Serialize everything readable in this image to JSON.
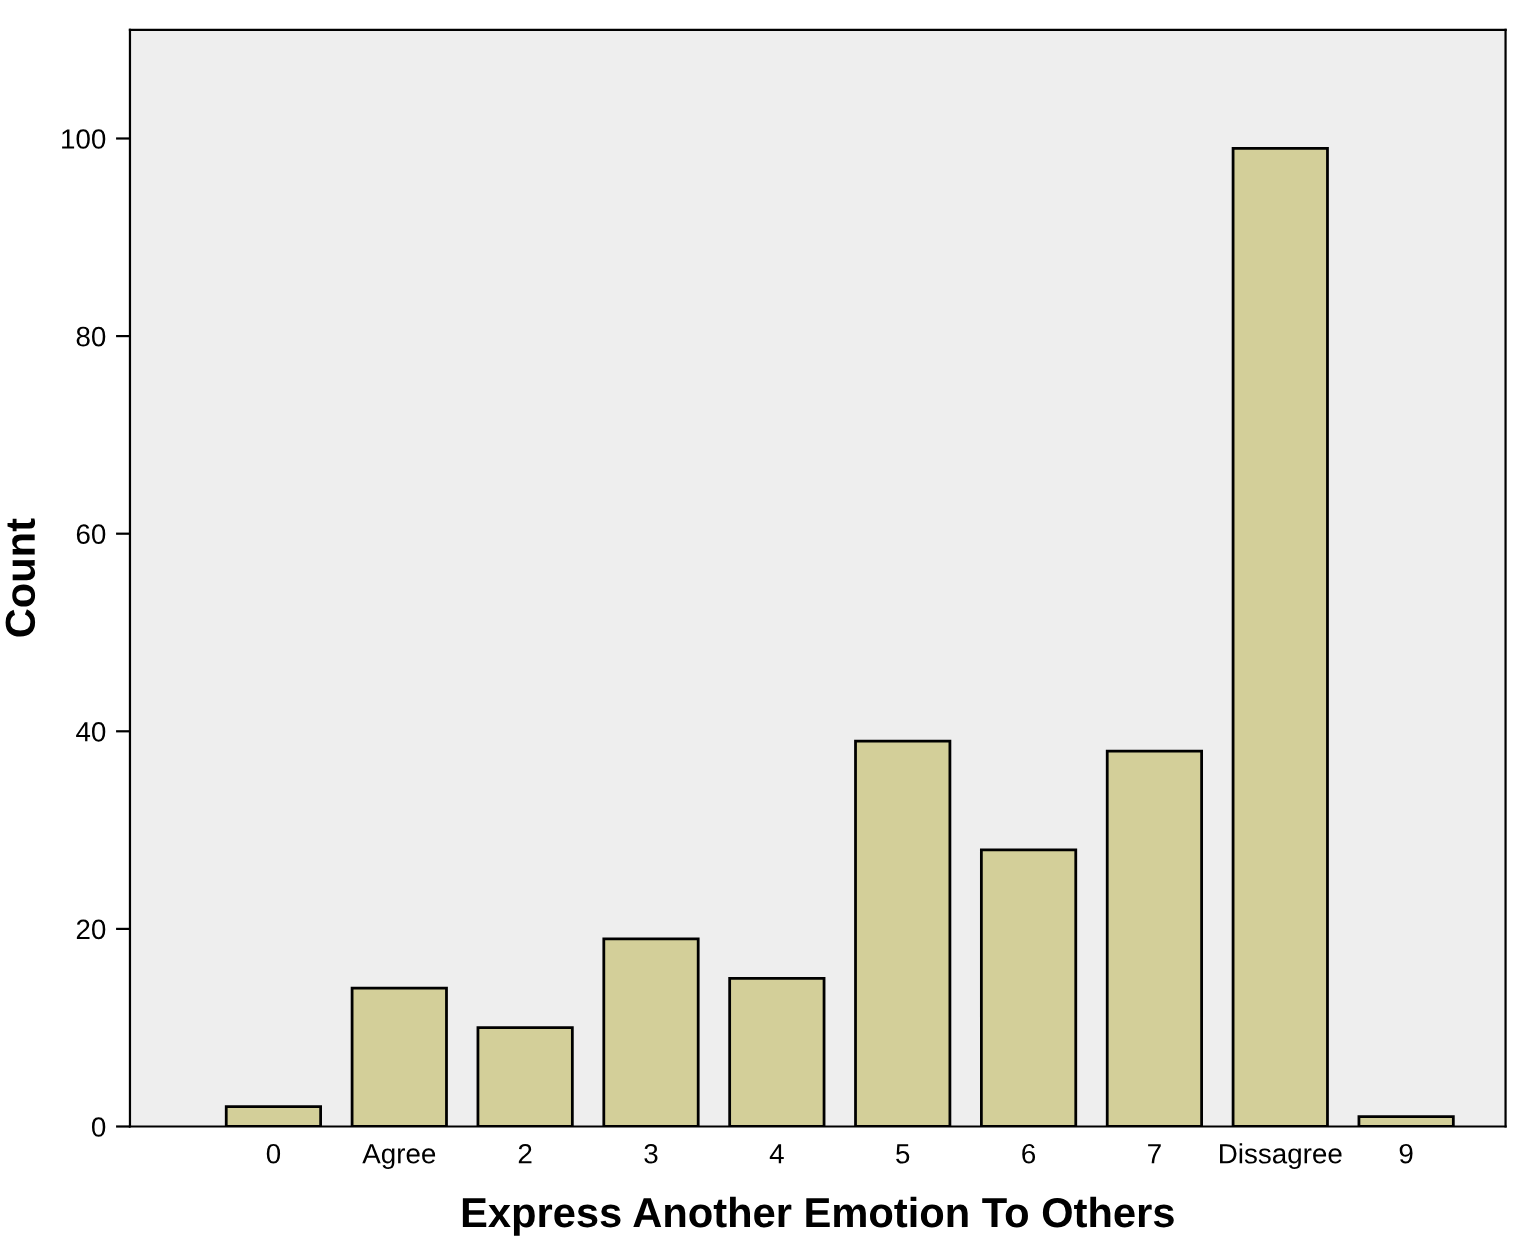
{
  "chart_data": {
    "type": "bar",
    "xlabel": "Express Another Emotion To Others",
    "ylabel": "Count",
    "categories": [
      "0",
      "Agree",
      "2",
      "3",
      "4",
      "5",
      "6",
      "7",
      "Dissagree",
      "9"
    ],
    "values": [
      2,
      14,
      10,
      19,
      15,
      39,
      28,
      38,
      99,
      1
    ],
    "color": "#d3cf99",
    "ylim": [
      0,
      111
    ],
    "yticks": [
      0,
      20,
      40,
      60,
      80,
      100
    ],
    "grid": false,
    "legend": false
  }
}
